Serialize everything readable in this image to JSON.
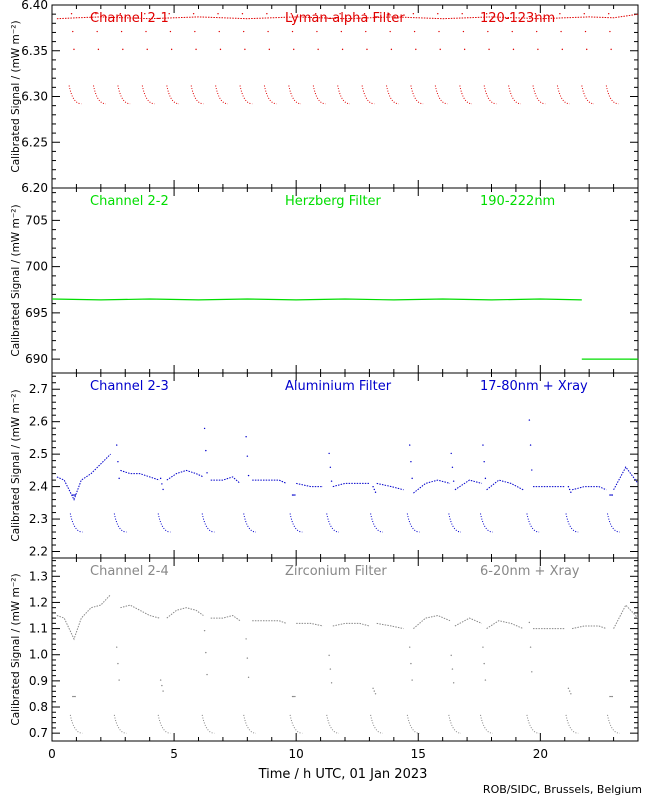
{
  "figure": {
    "xlabel": "Time / h UTC, 01 Jan 2023",
    "credit": "ROB/SIDC, Brussels, Belgium",
    "xticks": [
      "0",
      "5",
      "10",
      "15",
      "20"
    ],
    "xlim": [
      0,
      24
    ]
  },
  "chart_data": [
    {
      "type": "scatter",
      "channel": "Channel 2-1",
      "filter": "Lyman-alpha Filter",
      "band": "120-123nm",
      "color": "#e00000",
      "ylabel": "Calibrated Signal / (mW m⁻²)",
      "ylim": [
        6.2,
        6.4
      ],
      "yticks": [
        "6.20",
        "6.25",
        "6.30",
        "6.35",
        "6.40"
      ],
      "series": [
        {
          "segments": [
            {
              "x": [
                0.2,
                1.0,
                2.0,
                3.0,
                4.0,
                5.0,
                6.0,
                7.0,
                8.0,
                9.0,
                10.0,
                11.0,
                12.0,
                13.0,
                14.0,
                15.0,
                16.0,
                17.0,
                18.0,
                19.0,
                20.0,
                21.0,
                22.0,
                23.0,
                24.0
              ],
              "y": [
                6.385,
                6.386,
                6.387,
                6.386,
                6.385,
                6.386,
                6.387,
                6.386,
                6.385,
                6.386,
                6.387,
                6.386,
                6.385,
                6.386,
                6.387,
                6.386,
                6.385,
                6.386,
                6.387,
                6.386,
                6.385,
                6.386,
                6.387,
                6.386,
                6.39
              ]
            }
          ]
        }
      ],
      "dips": {
        "centers": [
          0.95,
          1.95,
          2.95,
          3.95,
          4.95,
          5.95,
          6.95,
          7.95,
          8.95,
          9.95,
          10.95,
          11.95,
          12.95,
          13.95,
          14.95,
          15.95,
          16.95,
          17.95,
          18.95,
          19.95,
          20.95,
          21.95,
          22.95
        ],
        "low": 6.292
      }
    },
    {
      "type": "line",
      "channel": "Channel 2-2",
      "filter": "Herzberg Filter",
      "band": "190-222nm",
      "color": "#00dd00",
      "ylabel": "Calibrated Signal / (mW m⁻²)",
      "ylim": [
        688.5,
        708.5
      ],
      "yticks": [
        "690",
        "695",
        "700",
        "705"
      ],
      "series": [
        {
          "segments": [
            {
              "x": [
                0,
                2,
                4,
                6,
                8,
                10,
                12,
                14,
                16,
                18,
                20,
                21.7
              ],
              "y": [
                696.5,
                696.4,
                696.5,
                696.4,
                696.5,
                696.4,
                696.5,
                696.4,
                696.5,
                696.4,
                696.5,
                696.4
              ]
            },
            {
              "x": [
                21.7,
                24
              ],
              "y": [
                690.0,
                690.0
              ]
            }
          ]
        }
      ]
    },
    {
      "type": "scatter",
      "channel": "Channel 2-3",
      "filter": "Aluminium Filter",
      "band": "17-80nm + Xray",
      "color": "#0000cc",
      "ylabel": "Calibrated Signal / (mW m⁻²)",
      "ylim": [
        2.18,
        2.75
      ],
      "yticks": [
        "2.2",
        "2.3",
        "2.4",
        "2.5",
        "2.6",
        "2.7"
      ],
      "series": [
        {
          "segments": [
            {
              "x": [
                0.2,
                0.5,
                0.9,
                1.2,
                1.6,
                2.0,
                2.4
              ],
              "y": [
                2.43,
                2.42,
                2.36,
                2.42,
                2.44,
                2.47,
                2.5
              ]
            },
            {
              "x": [
                2.8,
                3.2,
                3.6,
                4.0,
                4.4
              ],
              "y": [
                2.45,
                2.44,
                2.44,
                2.43,
                2.42
              ]
            },
            {
              "x": [
                4.7,
                5.1,
                5.5,
                5.9,
                6.2
              ],
              "y": [
                2.42,
                2.44,
                2.45,
                2.44,
                2.43
              ]
            },
            {
              "x": [
                6.5,
                7.0,
                7.4,
                7.7
              ],
              "y": [
                2.42,
                2.42,
                2.43,
                2.41
              ]
            },
            {
              "x": [
                8.2,
                8.8,
                9.3,
                9.6
              ],
              "y": [
                2.42,
                2.42,
                2.42,
                2.41
              ]
            },
            {
              "x": [
                10.0,
                10.6,
                11.1
              ],
              "y": [
                2.41,
                2.4,
                2.4
              ]
            },
            {
              "x": [
                11.5,
                12.0,
                12.6,
                13.0
              ],
              "y": [
                2.4,
                2.41,
                2.41,
                2.41
              ]
            },
            {
              "x": [
                13.3,
                13.9,
                14.4
              ],
              "y": [
                2.41,
                2.4,
                2.39
              ]
            },
            {
              "x": [
                14.8,
                15.3,
                15.8,
                16.3
              ],
              "y": [
                2.38,
                2.41,
                2.42,
                2.41
              ]
            },
            {
              "x": [
                16.5,
                17.1,
                17.6
              ],
              "y": [
                2.39,
                2.42,
                2.41
              ]
            },
            {
              "x": [
                17.8,
                18.3,
                18.8,
                19.3
              ],
              "y": [
                2.39,
                2.42,
                2.41,
                2.39
              ]
            },
            {
              "x": [
                19.7,
                20.3,
                21.0
              ],
              "y": [
                2.4,
                2.4,
                2.4
              ]
            },
            {
              "x": [
                21.3,
                21.8,
                22.4,
                22.7
              ],
              "y": [
                2.39,
                2.4,
                2.4,
                2.39
              ]
            },
            {
              "x": [
                23.0,
                23.5,
                24.0
              ],
              "y": [
                2.39,
                2.46,
                2.41
              ]
            }
          ]
        }
      ],
      "dips": {
        "centers": [
          1.0,
          2.8,
          4.6,
          6.4,
          8.1,
          10.0,
          11.5,
          13.3,
          14.8,
          16.5,
          17.8,
          19.7,
          21.3,
          23.0
        ],
        "low": 2.26
      }
    },
    {
      "type": "scatter",
      "channel": "Channel 2-4",
      "filter": "Zirconium Filter",
      "band": "6-20nm + Xray",
      "color": "#888888",
      "ylabel": "Calibrated Signal / (mW m⁻²)",
      "ylim": [
        0.67,
        1.37
      ],
      "yticks": [
        "0.7",
        "0.8",
        "0.9",
        "1.0",
        "1.1",
        "1.2",
        "1.3"
      ],
      "series": [
        {
          "segments": [
            {
              "x": [
                0.2,
                0.5,
                0.9,
                1.2,
                1.6,
                2.0,
                2.4
              ],
              "y": [
                1.15,
                1.14,
                1.06,
                1.14,
                1.18,
                1.19,
                1.23
              ]
            },
            {
              "x": [
                2.8,
                3.2,
                3.6,
                4.0,
                4.4
              ],
              "y": [
                1.18,
                1.19,
                1.17,
                1.15,
                1.14
              ]
            },
            {
              "x": [
                4.7,
                5.1,
                5.5,
                5.9,
                6.2
              ],
              "y": [
                1.14,
                1.17,
                1.18,
                1.17,
                1.15
              ]
            },
            {
              "x": [
                6.5,
                7.0,
                7.4,
                7.7
              ],
              "y": [
                1.14,
                1.14,
                1.15,
                1.13
              ]
            },
            {
              "x": [
                8.2,
                8.8,
                9.3,
                9.6
              ],
              "y": [
                1.13,
                1.13,
                1.13,
                1.12
              ]
            },
            {
              "x": [
                10.0,
                10.6,
                11.1
              ],
              "y": [
                1.12,
                1.12,
                1.11
              ]
            },
            {
              "x": [
                11.5,
                12.0,
                12.6,
                13.0
              ],
              "y": [
                1.11,
                1.12,
                1.12,
                1.11
              ]
            },
            {
              "x": [
                13.3,
                13.9,
                14.4
              ],
              "y": [
                1.12,
                1.11,
                1.1
              ]
            },
            {
              "x": [
                14.8,
                15.3,
                15.8,
                16.3
              ],
              "y": [
                1.1,
                1.14,
                1.15,
                1.13
              ]
            },
            {
              "x": [
                16.5,
                17.1,
                17.6
              ],
              "y": [
                1.11,
                1.14,
                1.12
              ]
            },
            {
              "x": [
                17.8,
                18.3,
                18.8,
                19.3
              ],
              "y": [
                1.1,
                1.13,
                1.12,
                1.1
              ]
            },
            {
              "x": [
                19.7,
                20.3,
                21.0
              ],
              "y": [
                1.1,
                1.1,
                1.1
              ]
            },
            {
              "x": [
                21.3,
                21.8,
                22.4,
                22.7
              ],
              "y": [
                1.1,
                1.11,
                1.11,
                1.1
              ]
            },
            {
              "x": [
                23.0,
                23.5,
                24.0
              ],
              "y": [
                1.1,
                1.19,
                1.14
              ]
            }
          ]
        }
      ],
      "dips": {
        "centers": [
          1.0,
          2.8,
          4.6,
          6.4,
          8.1,
          10.0,
          11.5,
          13.3,
          14.8,
          16.5,
          17.8,
          19.7,
          21.3,
          23.0
        ],
        "low": 0.7
      }
    }
  ]
}
